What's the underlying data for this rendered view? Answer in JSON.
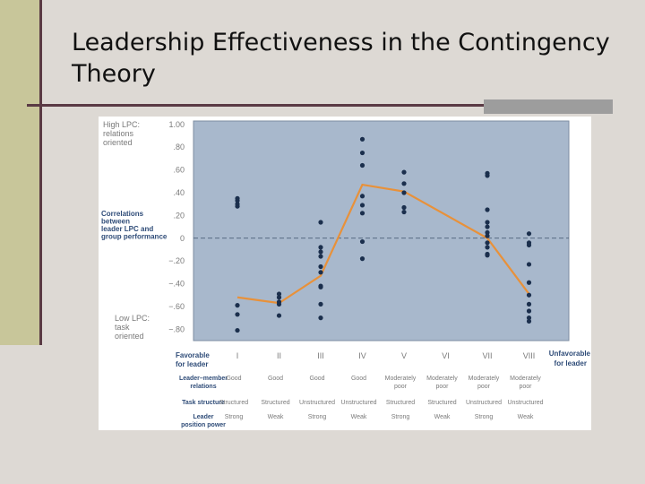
{
  "slide": {
    "title": "Leadership Effectiveness in the Contingency Theory"
  },
  "chart_data": {
    "type": "scatter",
    "title": "",
    "ylabel": "Correlations between leader LPC and group performance",
    "ylim": [
      -0.9,
      1.03
    ],
    "y_ticks": [
      "1.00",
      ".80",
      ".60",
      ".40",
      ".20",
      "0",
      "−.20",
      "−.40",
      "−.60",
      "−.80"
    ],
    "y_tick_values": [
      1.0,
      0.8,
      0.6,
      0.4,
      0.2,
      0,
      -0.2,
      -0.4,
      -0.6,
      -0.8
    ],
    "y_top_label": "High LPC: relations oriented",
    "y_bottom_label": "Low LPC: task oriented",
    "x_left_label": "Favorable for leader",
    "x_right_label": "Unfavorable for leader",
    "categories": [
      "I",
      "II",
      "III",
      "IV",
      "V",
      "VI",
      "VII",
      "VIII"
    ],
    "points": [
      [
        0.28,
        0.3,
        0.33,
        0.35,
        -0.59,
        -0.67,
        -0.81
      ],
      [
        -0.49,
        -0.52,
        -0.56,
        -0.58,
        -0.68
      ],
      [
        0.14,
        -0.08,
        -0.12,
        -0.16,
        -0.25,
        -0.3,
        -0.42,
        -0.43,
        -0.58,
        -0.7
      ],
      [
        0.87,
        0.75,
        0.64,
        0.37,
        0.29,
        0.22,
        -0.03,
        -0.18
      ],
      [
        0.58,
        0.48,
        0.4,
        0.27,
        0.23
      ],
      [],
      [
        0.57,
        0.55,
        0.25,
        0.14,
        0.1,
        0.05,
        0.02,
        -0.04,
        -0.08,
        -0.14,
        -0.15
      ],
      [
        0.04,
        -0.04,
        -0.06,
        -0.23,
        -0.39,
        -0.5,
        -0.58,
        -0.64,
        -0.7,
        -0.73
      ]
    ],
    "median_line": {
      "categories": [
        "I",
        "II",
        "III",
        "IV",
        "V",
        "VI",
        "VII",
        "VIII"
      ],
      "values": [
        -0.52,
        -0.57,
        -0.33,
        0.47,
        0.41,
        null,
        0.0,
        -0.49
      ],
      "color": "#e8913a"
    },
    "zero_line": "dashed",
    "plot_color": "#a8b8cc",
    "dot_color": "#1b2f4d",
    "rows": [
      {
        "label": "Leader–member relations",
        "values": [
          "Good",
          "Good",
          "Good",
          "Good",
          "Moderately poor",
          "Moderately poor",
          "Moderately poor",
          "Moderately poor"
        ]
      },
      {
        "label": "Task structure",
        "values": [
          "Structured",
          "Structured",
          "Unstructured",
          "Unstructured",
          "Structured",
          "Structured",
          "Unstructured",
          "Unstructured"
        ]
      },
      {
        "label": "Leader position power",
        "values": [
          "Strong",
          "Weak",
          "Strong",
          "Weak",
          "Strong",
          "Weak",
          "Strong",
          "Weak"
        ]
      }
    ]
  }
}
